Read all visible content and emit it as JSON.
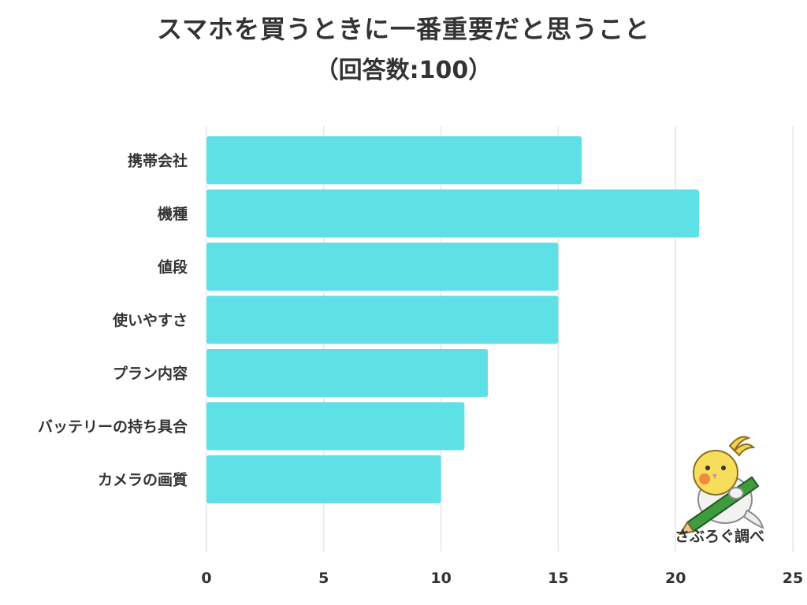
{
  "title": {
    "line1": "スマホを買うときに一番重要だと思うこと",
    "line2": "（回答数:100）"
  },
  "credit": "さぶろぐ調べ",
  "mascot_icon": "cockatiel-with-pencil-icon",
  "colors": {
    "bar": "#5ee0e6",
    "grid": "#e6e6e6",
    "text": "#333333"
  },
  "chart_data": {
    "type": "bar",
    "orientation": "horizontal",
    "categories": [
      "携帯会社",
      "機種",
      "値段",
      "使いやすさ",
      "プラン内容",
      "バッテリーの持ち具合",
      "カメラの画質"
    ],
    "values": [
      16,
      21,
      15,
      15,
      12,
      11,
      10
    ],
    "xlim": [
      0,
      25
    ],
    "xticks": [
      0,
      5,
      10,
      15,
      20,
      25
    ],
    "grid": true,
    "legend": "none"
  }
}
